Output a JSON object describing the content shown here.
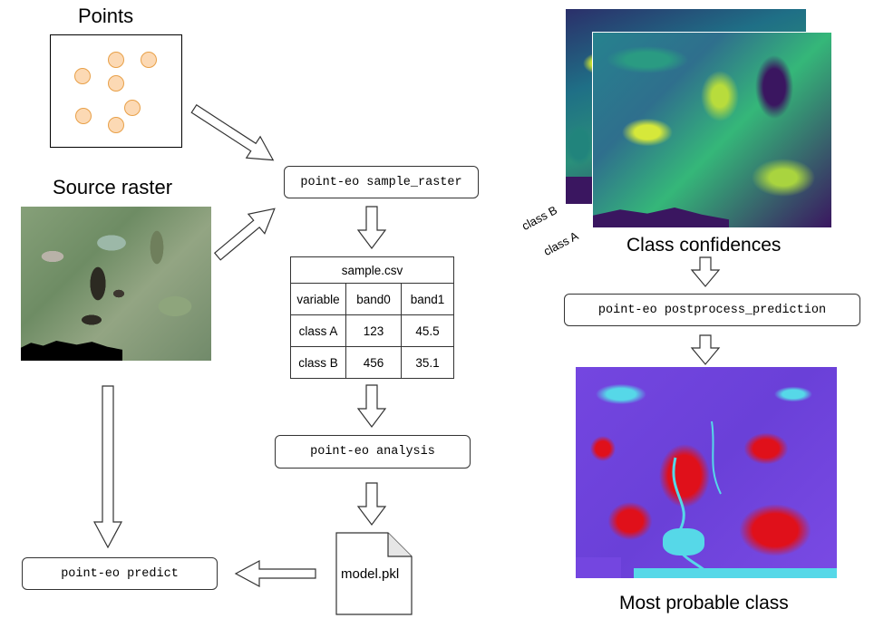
{
  "points": {
    "title": "Points"
  },
  "source_raster": {
    "title": "Source raster"
  },
  "commands": {
    "sample_raster": "point-eo sample_raster",
    "analysis": "point-eo analysis",
    "predict": "point-eo predict",
    "postprocess": "point-eo postprocess_prediction"
  },
  "csv": {
    "filename": "sample.csv",
    "headers": [
      "variable",
      "band0",
      "band1"
    ],
    "rows": [
      [
        "class A",
        "123",
        "45.5"
      ],
      [
        "class B",
        "456",
        "35.1"
      ]
    ]
  },
  "model_file": {
    "label": "model.pkl"
  },
  "confidences": {
    "title": "Class confidences",
    "layer_b": "class B",
    "layer_a": "class A"
  },
  "result": {
    "title": "Most probable class"
  },
  "colors": {
    "point_fill": "#fcd9b4",
    "point_stroke": "#e8a048",
    "class_purple": "#7446e0",
    "class_red": "#e0101a",
    "class_cyan": "#56d8e8",
    "confidence_dark": "#3a1660",
    "confidence_teal": "#21847c",
    "confidence_yellow": "#c8e030"
  }
}
